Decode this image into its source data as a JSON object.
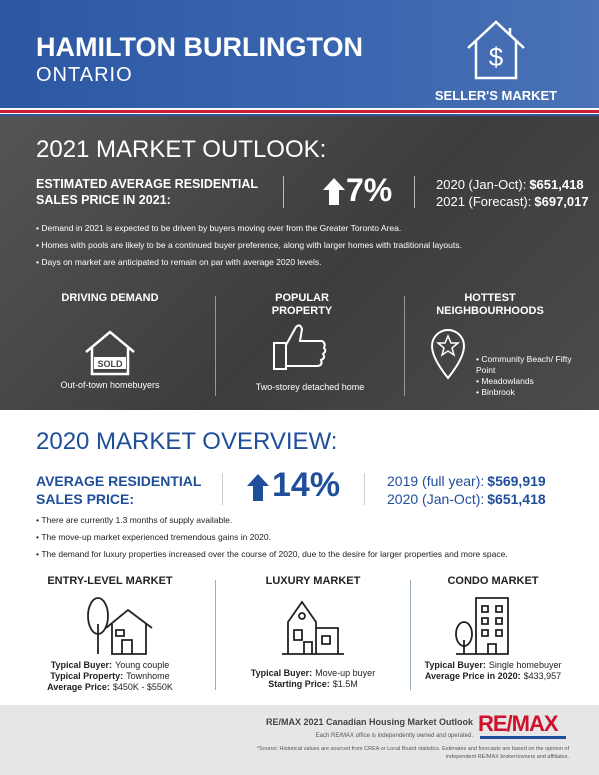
{
  "header": {
    "title": "HAMILTON BURLINGTON",
    "subtitle": "ONTARIO",
    "badge": "SELLER'S MARKET"
  },
  "outlook": {
    "title": "2021 MARKET OUTLOOK:",
    "price_label": "ESTIMATED AVERAGE RESIDENTIAL SALES PRICE IN 2021:",
    "change": "7%",
    "prices": [
      {
        "label": "2020 (Jan-Oct):",
        "value": "$651,418"
      },
      {
        "label": "2021 (Forecast):",
        "value": "$697,017"
      }
    ],
    "bullets": [
      "Demand in 2021 is expected to be driven by buyers moving over from the Greater Toronto Area.",
      "Homes with pools are likely to be a continued buyer preference, along with larger homes with traditional layouts.",
      "Days on market are anticipated to remain on par with average 2020 levels."
    ],
    "columns": [
      {
        "heading": "DRIVING DEMAND",
        "icon_label": "SOLD",
        "caption": "Out-of-town homebuyers"
      },
      {
        "heading": "POPULAR PROPERTY",
        "caption": "Two-storey detached home"
      },
      {
        "heading": "HOTTEST NEIGHBOURHOODS",
        "items": [
          "Community Beach/ Fifty Point",
          "Meadowlands",
          "Binbrook"
        ]
      }
    ]
  },
  "overview": {
    "title": "2020 MARKET OVERVIEW:",
    "price_label": "AVERAGE RESIDENTIAL SALES PRICE:",
    "change": "14%",
    "prices": [
      {
        "label": "2019 (full year):",
        "value": "$569,919"
      },
      {
        "label": "2020 (Jan-Oct):",
        "value": "$651,418"
      }
    ],
    "bullets": [
      "There are currently 1.3 months of supply available.",
      "The move-up market experienced tremendous gains in 2020.",
      "The demand for luxury properties increased over the course of 2020, due to the desire for larger properties and more space."
    ],
    "markets": [
      {
        "heading": "ENTRY-LEVEL MARKET",
        "lines": [
          {
            "label": "Typical Buyer:",
            "value": "Young couple"
          },
          {
            "label": "Typical Property:",
            "value": "Townhome"
          },
          {
            "label": "Average Price:",
            "value": "$450K - $550K"
          }
        ]
      },
      {
        "heading": "LUXURY MARKET",
        "lines": [
          {
            "label": "Typical Buyer:",
            "value": "Move-up buyer"
          },
          {
            "label": "Starting Price:",
            "value": "$1.5M"
          }
        ]
      },
      {
        "heading": "CONDO MARKET",
        "lines": [
          {
            "label": "Typical Buyer:",
            "value": "Single homebuyer"
          },
          {
            "label": "Average Price in 2020:",
            "value": "$433,957"
          }
        ]
      }
    ]
  },
  "footer": {
    "title": "RE/MAX 2021 Canadian Housing Market Outlook",
    "note": "Each RE/MAX office is independently owned and operated.",
    "source": "*Source: Historical values are sourced from CREA or Local Board statistics. Estimates and forecasts are based on the opinion of independent RE/MAX broker/owners and affiliates.",
    "logo": "RE/MAX"
  }
}
